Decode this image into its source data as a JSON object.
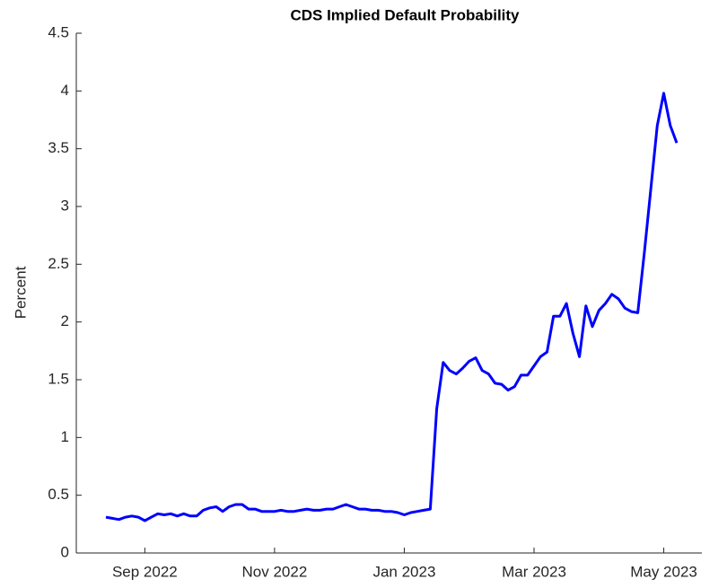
{
  "chart_data": {
    "type": "line",
    "title": "CDS Implied Default Probability",
    "y_label": "Percent",
    "categories": [
      null,
      null,
      null,
      null,
      null,
      null,
      "Sep 2022",
      null,
      null,
      null,
      null,
      null,
      null,
      null,
      null,
      null,
      null,
      null,
      null,
      null,
      null,
      null,
      null,
      null,
      null,
      null,
      "Nov 2022",
      null,
      null,
      null,
      null,
      null,
      null,
      null,
      null,
      null,
      null,
      null,
      null,
      null,
      null,
      null,
      null,
      null,
      null,
      null,
      "Jan 2023",
      null,
      null,
      null,
      null,
      null,
      null,
      null,
      null,
      null,
      null,
      null,
      null,
      null,
      null,
      null,
      null,
      null,
      null,
      null,
      "Mar 2023",
      null,
      null,
      null,
      null,
      null,
      null,
      null,
      null,
      null,
      null,
      null,
      null,
      null,
      null,
      null,
      null,
      null,
      null,
      null,
      "May 2023",
      null,
      null
    ],
    "series": [
      {
        "color": "#0000ff",
        "values": [
          0.31,
          0.3,
          0.29,
          0.31,
          0.32,
          0.31,
          0.28,
          0.31,
          0.34,
          0.33,
          0.34,
          0.32,
          0.34,
          0.32,
          0.32,
          0.37,
          0.39,
          0.4,
          0.36,
          0.4,
          0.42,
          0.42,
          0.38,
          0.38,
          0.36,
          0.36,
          0.36,
          0.37,
          0.36,
          0.36,
          0.37,
          0.38,
          0.37,
          0.37,
          0.38,
          0.38,
          0.4,
          0.42,
          0.4,
          0.38,
          0.38,
          0.37,
          0.37,
          0.36,
          0.36,
          0.35,
          0.33,
          0.35,
          0.36,
          0.37,
          0.38,
          1.25,
          1.65,
          1.58,
          1.55,
          1.6,
          1.66,
          1.69,
          1.58,
          1.55,
          1.47,
          1.46,
          1.41,
          1.44,
          1.54,
          1.54,
          1.62,
          1.7,
          1.74,
          2.05,
          2.05,
          2.16,
          1.9,
          1.7,
          2.14,
          1.96,
          2.1,
          2.16,
          2.24,
          2.2,
          2.12,
          2.09,
          2.08,
          2.6,
          3.15,
          3.7,
          3.98,
          3.7,
          3.55
        ]
      }
    ],
    "ylim": [
      0,
      4.5
    ],
    "yticks": [
      0,
      0.5,
      1,
      1.5,
      2,
      2.5,
      3,
      3.5,
      4,
      4.5
    ],
    "grid": false
  }
}
